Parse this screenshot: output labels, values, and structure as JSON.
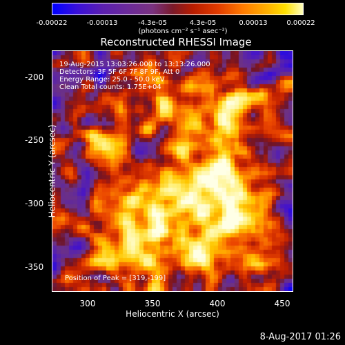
{
  "colorbar": {
    "ticks": [
      "-0.00022",
      "-0.00013",
      "-4.3e-05",
      "4.3e-05",
      "0.00013",
      "0.00022"
    ],
    "units": "(photons cm⁻² s⁻¹ asec⁻²)"
  },
  "plot": {
    "title": "Reconstructed RHESSI Image",
    "xlabel": "Heliocentric X (arcsec)",
    "ylabel": "Heliocentric Y (arcsec)",
    "xticks": [
      "300",
      "350",
      "400",
      "450"
    ],
    "yticks": [
      "-200",
      "-250",
      "-300",
      "-350"
    ],
    "info_lines": [
      "19-Aug-2015 13:03:26.000 to 13:13:26.000",
      "Detectors: 3F 5F 6F 7F 8F 9F, Att 0",
      "Energy Range: 25.0 - 50.0 keV",
      "Clean    Total counts: 1.75E+04"
    ],
    "peak_text": "Position of Peak = [319,-199]"
  },
  "footer": {
    "date": "8-Aug-2017 01:26"
  }
}
